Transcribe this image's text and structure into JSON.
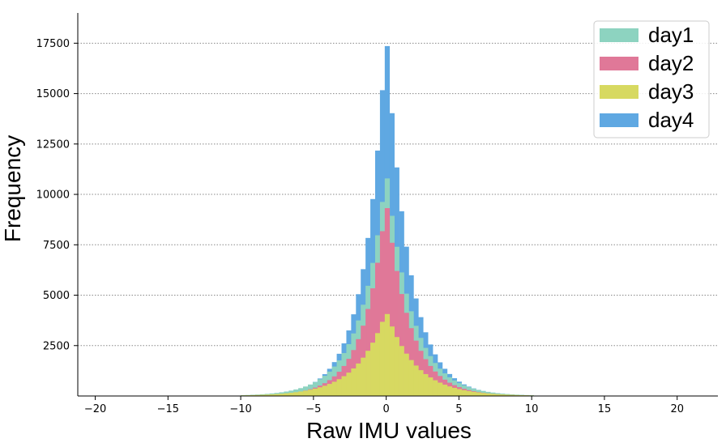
{
  "chart_data": {
    "type": "bar",
    "subtype": "overlaid-histogram",
    "title": "",
    "xlabel": "Raw IMU values",
    "ylabel": "Frequency",
    "xlim": [
      -21.2,
      22.8
    ],
    "ylim": [
      0,
      19000
    ],
    "xticks": [
      -20,
      -15,
      -10,
      -5,
      0,
      5,
      10,
      15,
      20
    ],
    "xtick_labels": [
      "−20",
      "−15",
      "−10",
      "−5",
      "0",
      "5",
      "10",
      "15",
      "20"
    ],
    "yticks": [
      2500,
      5000,
      7500,
      10000,
      12500,
      15000,
      17500
    ],
    "ytick_labels": [
      "2500",
      "5000",
      "7500",
      "10000",
      "12500",
      "15000",
      "17500"
    ],
    "grid": "horizontal dotted",
    "legend_position": "top-right",
    "bin_width": 0.33,
    "draw_order": [
      "day4",
      "day1",
      "day2",
      "day3"
    ],
    "series": [
      {
        "name": "day1",
        "color": "#8dd3c0",
        "peak": 11200,
        "left_scale": 1.75,
        "right_scale": 1.75
      },
      {
        "name": "day2",
        "color": "#e07898",
        "peak": 9700,
        "left_scale": 1.55,
        "right_scale": 1.62
      },
      {
        "name": "day3",
        "color": "#d7d961",
        "peak": 4200,
        "left_scale": 2.0,
        "right_scale": 2.0
      },
      {
        "name": "day4",
        "color": "#5fa8e2",
        "peak": 18100,
        "left_scale": 1.5,
        "right_scale": 1.55
      }
    ],
    "x_range": [
      -10.0,
      10.0
    ]
  }
}
